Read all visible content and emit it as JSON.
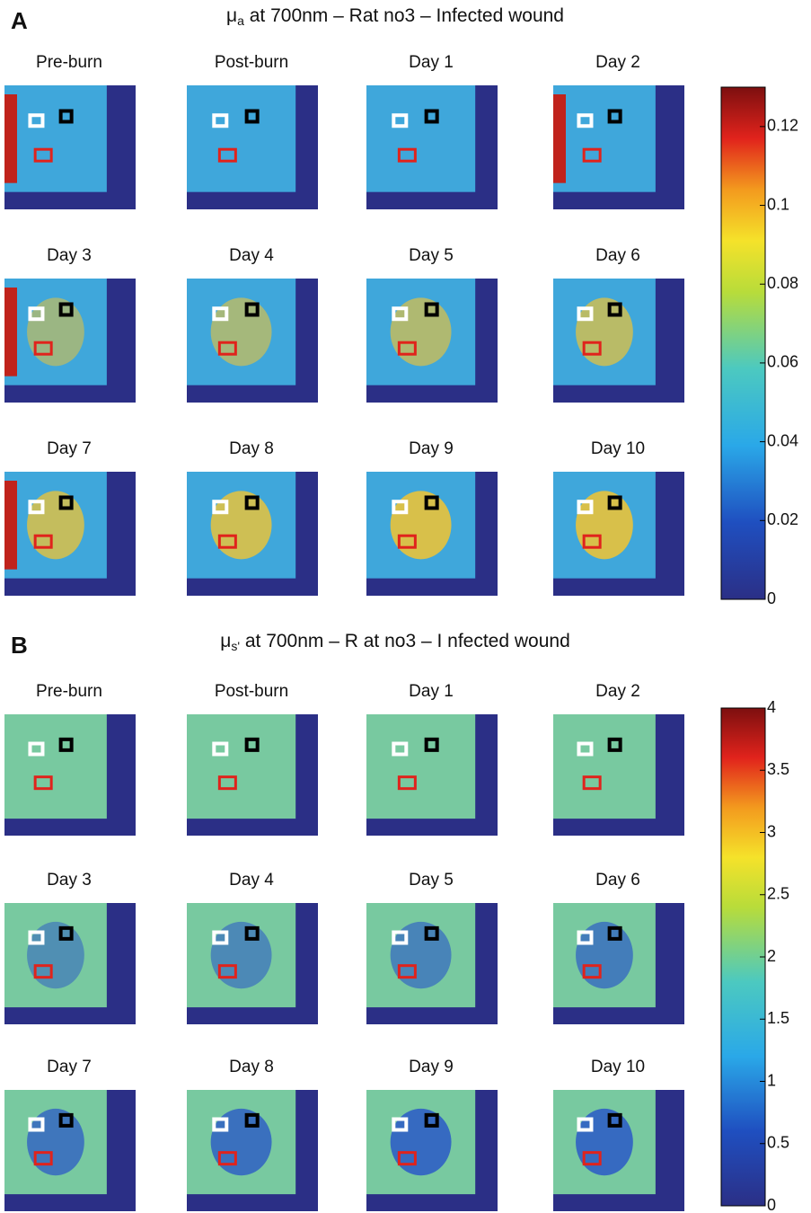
{
  "panels": [
    {
      "label": "A",
      "title": {
        "symbol": "μ",
        "sub": "a",
        "rest": " at 700nm – Rat no3 – Infected wound"
      },
      "images": [
        "Pre-burn",
        "Post-burn",
        "Day 1",
        "Day 2",
        "Day 3",
        "Day 4",
        "Day 5",
        "Day 6",
        "Day 7",
        "Day 8",
        "Day 9",
        "Day 10"
      ],
      "colorbar": {
        "range": [
          0,
          0.13
        ],
        "ticks": [
          0,
          0.02,
          0.04,
          0.06,
          0.08,
          0.1,
          0.12
        ]
      }
    },
    {
      "label": "B",
      "title": {
        "symbol": "μ",
        "sub": "s'",
        "rest": " at 700nm – R at no3 – I nfected wound"
      },
      "images": [
        "Pre-burn",
        "Post-burn",
        "Day 1",
        "Day 2",
        "Day 3",
        "Day 4",
        "Day 5",
        "Day 6",
        "Day 7",
        "Day 8",
        "Day 9",
        "Day 10"
      ],
      "colorbar": {
        "range": [
          0,
          4
        ],
        "ticks": [
          0,
          0.5,
          1,
          1.5,
          2,
          2.5,
          3,
          3.5,
          4
        ]
      }
    }
  ]
}
